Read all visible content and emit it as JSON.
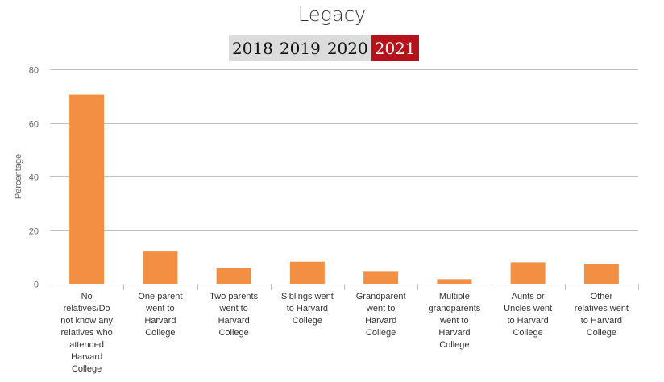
{
  "title": "Legacy",
  "year_tabs": [
    "2018",
    "2019",
    "2020",
    "2021"
  ],
  "active_year": "2021",
  "colors": {
    "bar": "#f28f43",
    "active_tab": "#b5121b",
    "tab": "#dcdcdc",
    "grid": "#c0c0c0"
  },
  "chart_data": {
    "type": "bar",
    "ylabel": "Percentage",
    "ylim": [
      0,
      80
    ],
    "yticks": [
      0,
      20,
      40,
      60,
      80
    ],
    "grid": true,
    "categories": [
      [
        "No",
        "relatives/Do",
        "not know any",
        "relatives who",
        "attended",
        "Harvard",
        "College"
      ],
      [
        "One parent",
        "went to",
        "Harvard",
        "College"
      ],
      [
        "Two parents",
        "went to",
        "Harvard",
        "College"
      ],
      [
        "Siblings went",
        "to Harvard",
        "College"
      ],
      [
        "Grandparent",
        "went to",
        "Harvard",
        "College"
      ],
      [
        "Multiple",
        "grandparents",
        "went to",
        "Harvard",
        "College"
      ],
      [
        "Aunts or",
        "Uncles went",
        "to Harvard",
        "College"
      ],
      [
        "Other",
        "relatives went",
        "to Harvard",
        "College"
      ]
    ],
    "values": [
      70.5,
      12,
      6,
      8.2,
      4.7,
      1.7,
      8,
      7.4
    ]
  }
}
